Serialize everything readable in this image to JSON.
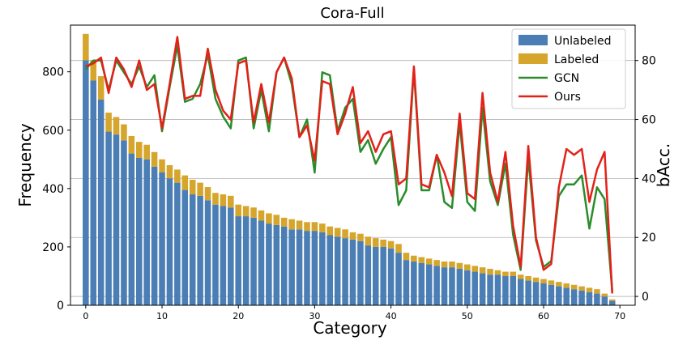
{
  "chart_data": {
    "type": "bar",
    "title": "Cora-Full",
    "xlabel": "Category",
    "ylabel": "Frequency",
    "ylabel_right": "bAcc.",
    "xlim": [
      -2,
      72
    ],
    "ylim": [
      0,
      960
    ],
    "ylim_right": [
      -3,
      92
    ],
    "xticks": [
      0,
      10,
      20,
      30,
      40,
      50,
      60,
      70
    ],
    "yticks": [
      0,
      200,
      400,
      600,
      800
    ],
    "yticks_right": [
      0,
      20,
      40,
      60,
      80
    ],
    "grid": "horizontal lines at right-axis ticks",
    "legend_position": "top-right",
    "x": [
      0,
      1,
      2,
      3,
      4,
      5,
      6,
      7,
      8,
      9,
      10,
      11,
      12,
      13,
      14,
      15,
      16,
      17,
      18,
      19,
      20,
      21,
      22,
      23,
      24,
      25,
      26,
      27,
      28,
      29,
      30,
      31,
      32,
      33,
      34,
      35,
      36,
      37,
      38,
      39,
      40,
      41,
      42,
      43,
      44,
      45,
      46,
      47,
      48,
      49,
      50,
      51,
      52,
      53,
      54,
      55,
      56,
      57,
      58,
      59,
      60,
      61,
      62,
      63,
      64,
      65,
      66,
      67,
      68,
      69
    ],
    "series": [
      {
        "name": "Unlabeled",
        "kind": "bar",
        "color": "#4a7eb4",
        "values": [
          840,
          770,
          705,
          595,
          585,
          565,
          520,
          505,
          500,
          475,
          455,
          435,
          420,
          395,
          380,
          375,
          360,
          345,
          340,
          335,
          305,
          305,
          300,
          290,
          280,
          275,
          270,
          260,
          260,
          255,
          255,
          250,
          240,
          235,
          230,
          225,
          220,
          205,
          200,
          200,
          195,
          180,
          155,
          150,
          145,
          140,
          135,
          130,
          130,
          125,
          120,
          115,
          110,
          105,
          105,
          100,
          100,
          90,
          85,
          80,
          75,
          70,
          65,
          60,
          55,
          50,
          45,
          40,
          30,
          15
        ]
      },
      {
        "name": "Labeled",
        "kind": "bar_stacked",
        "color": "#d6a52b",
        "values": [
          90,
          70,
          80,
          65,
          60,
          55,
          60,
          55,
          50,
          50,
          45,
          45,
          45,
          50,
          50,
          45,
          45,
          40,
          40,
          40,
          40,
          35,
          35,
          35,
          35,
          35,
          30,
          35,
          30,
          30,
          30,
          30,
          30,
          30,
          30,
          25,
          25,
          30,
          30,
          25,
          25,
          30,
          25,
          20,
          20,
          20,
          20,
          20,
          20,
          20,
          20,
          20,
          20,
          20,
          15,
          15,
          15,
          15,
          15,
          15,
          15,
          15,
          15,
          15,
          15,
          15,
          15,
          15,
          10,
          5
        ]
      },
      {
        "name": "GCN",
        "kind": "line",
        "axis": "right",
        "color": "#2a8c2a",
        "values": [
          77,
          80,
          80,
          70,
          80,
          76,
          72,
          78,
          71,
          75,
          56,
          71,
          85,
          66,
          67,
          72,
          82,
          67,
          61,
          57,
          80,
          81,
          57,
          70,
          56,
          76,
          81,
          72,
          54,
          60,
          42,
          76,
          75,
          56,
          64,
          67,
          49,
          53,
          45,
          50,
          54,
          31,
          36,
          77,
          36,
          36,
          48,
          32,
          30,
          59,
          32,
          29,
          64,
          39,
          31,
          45,
          21,
          9,
          47,
          19,
          10,
          12,
          34,
          38,
          38,
          41,
          23,
          37,
          33,
          2
        ]
      },
      {
        "name": "Ours",
        "kind": "line",
        "axis": "right",
        "color": "#e32119",
        "values": [
          78,
          79,
          81,
          69,
          81,
          77,
          71,
          80,
          70,
          72,
          57,
          72,
          88,
          67,
          68,
          68,
          84,
          70,
          63,
          60,
          79,
          80,
          59,
          72,
          59,
          76,
          81,
          74,
          54,
          58,
          46,
          73,
          72,
          55,
          62,
          71,
          52,
          56,
          49,
          55,
          56,
          38,
          40,
          78,
          38,
          37,
          48,
          42,
          34,
          62,
          35,
          33,
          69,
          42,
          32,
          49,
          24,
          10,
          51,
          20,
          9,
          11,
          37,
          50,
          48,
          50,
          32,
          43,
          49,
          1
        ]
      }
    ]
  }
}
